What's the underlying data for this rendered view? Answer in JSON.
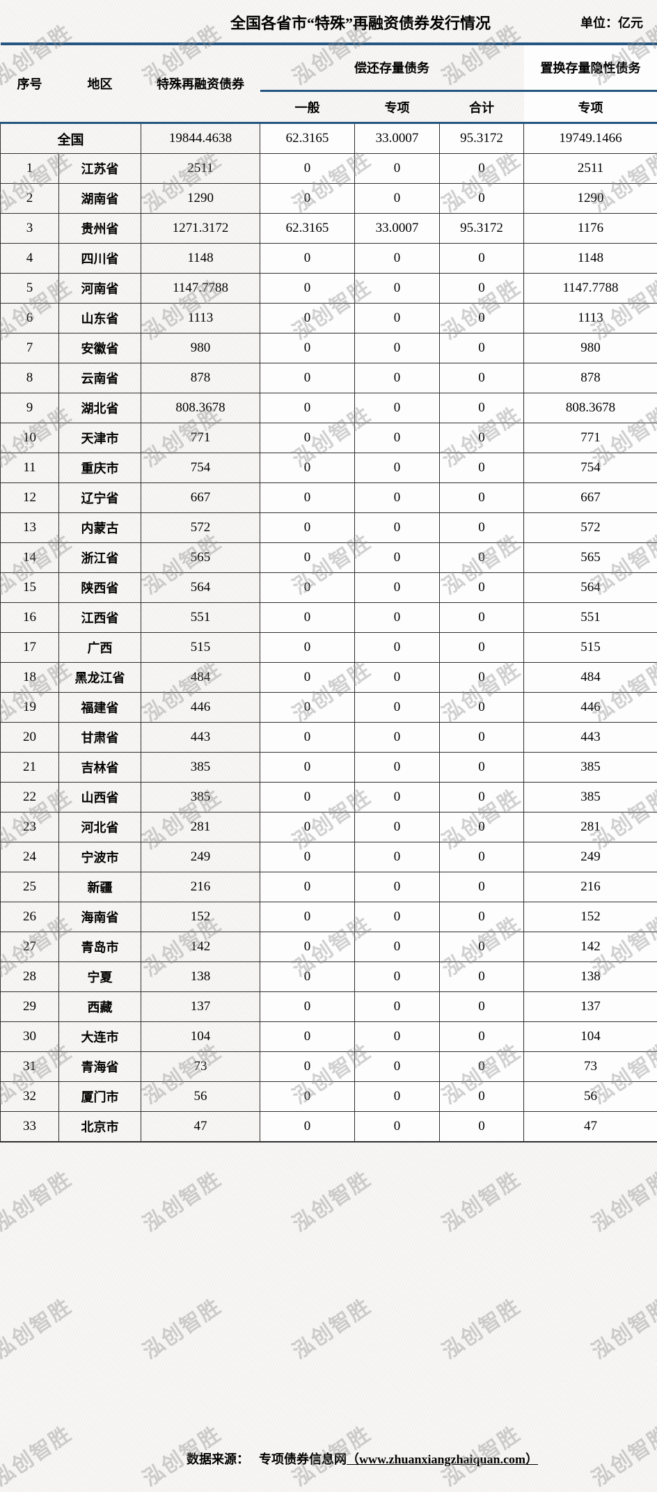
{
  "title": "全国各省市“特殊”再融资债券发行情况",
  "unit_label": "单位：亿元",
  "watermark": {
    "text": "泓创智胜"
  },
  "table": {
    "columns": [
      "序号",
      "地区",
      "特殊再融资债券"
    ],
    "group1": "偿还存量债务",
    "group1_sub": [
      "一般",
      "专项",
      "合计"
    ],
    "group2": "置换存量隐性债务",
    "group2_sub": "专项",
    "rows": [
      {
        "no": null,
        "region": "全国",
        "values": [
          "19844.4638",
          "62.3165",
          "33.0007",
          "95.3172",
          "19749.1466"
        ]
      },
      {
        "no": "1",
        "region": "江苏省",
        "values": [
          "2511",
          "0",
          "0",
          "0",
          "2511"
        ]
      },
      {
        "no": "2",
        "region": "湖南省",
        "values": [
          "1290",
          "0",
          "0",
          "0",
          "1290"
        ]
      },
      {
        "no": "3",
        "region": "贵州省",
        "values": [
          "1271.3172",
          "62.3165",
          "33.0007",
          "95.3172",
          "1176"
        ]
      },
      {
        "no": "4",
        "region": "四川省",
        "values": [
          "1148",
          "0",
          "0",
          "0",
          "1148"
        ]
      },
      {
        "no": "5",
        "region": "河南省",
        "values": [
          "1147.7788",
          "0",
          "0",
          "0",
          "1147.7788"
        ]
      },
      {
        "no": "6",
        "region": "山东省",
        "values": [
          "1113",
          "0",
          "0",
          "0",
          "1113"
        ]
      },
      {
        "no": "7",
        "region": "安徽省",
        "values": [
          "980",
          "0",
          "0",
          "0",
          "980"
        ]
      },
      {
        "no": "8",
        "region": "云南省",
        "values": [
          "878",
          "0",
          "0",
          "0",
          "878"
        ]
      },
      {
        "no": "9",
        "region": "湖北省",
        "values": [
          "808.3678",
          "0",
          "0",
          "0",
          "808.3678"
        ]
      },
      {
        "no": "10",
        "region": "天津市",
        "values": [
          "771",
          "0",
          "0",
          "0",
          "771"
        ]
      },
      {
        "no": "11",
        "region": "重庆市",
        "values": [
          "754",
          "0",
          "0",
          "0",
          "754"
        ]
      },
      {
        "no": "12",
        "region": "辽宁省",
        "values": [
          "667",
          "0",
          "0",
          "0",
          "667"
        ]
      },
      {
        "no": "13",
        "region": "内蒙古",
        "values": [
          "572",
          "0",
          "0",
          "0",
          "572"
        ]
      },
      {
        "no": "14",
        "region": "浙江省",
        "values": [
          "565",
          "0",
          "0",
          "0",
          "565"
        ]
      },
      {
        "no": "15",
        "region": "陕西省",
        "values": [
          "564",
          "0",
          "0",
          "0",
          "564"
        ]
      },
      {
        "no": "16",
        "region": "江西省",
        "values": [
          "551",
          "0",
          "0",
          "0",
          "551"
        ]
      },
      {
        "no": "17",
        "region": "广西",
        "values": [
          "515",
          "0",
          "0",
          "0",
          "515"
        ]
      },
      {
        "no": "18",
        "region": "黑龙江省",
        "values": [
          "484",
          "0",
          "0",
          "0",
          "484"
        ]
      },
      {
        "no": "19",
        "region": "福建省",
        "values": [
          "446",
          "0",
          "0",
          "0",
          "446"
        ]
      },
      {
        "no": "20",
        "region": "甘肃省",
        "values": [
          "443",
          "0",
          "0",
          "0",
          "443"
        ]
      },
      {
        "no": "21",
        "region": "吉林省",
        "values": [
          "385",
          "0",
          "0",
          "0",
          "385"
        ]
      },
      {
        "no": "22",
        "region": "山西省",
        "values": [
          "385",
          "0",
          "0",
          "0",
          "385"
        ]
      },
      {
        "no": "23",
        "region": "河北省",
        "values": [
          "281",
          "0",
          "0",
          "0",
          "281"
        ]
      },
      {
        "no": "24",
        "region": "宁波市",
        "values": [
          "249",
          "0",
          "0",
          "0",
          "249"
        ]
      },
      {
        "no": "25",
        "region": "新疆",
        "values": [
          "216",
          "0",
          "0",
          "0",
          "216"
        ]
      },
      {
        "no": "26",
        "region": "海南省",
        "values": [
          "152",
          "0",
          "0",
          "0",
          "152"
        ]
      },
      {
        "no": "27",
        "region": "青岛市",
        "values": [
          "142",
          "0",
          "0",
          "0",
          "142"
        ]
      },
      {
        "no": "28",
        "region": "宁夏",
        "values": [
          "138",
          "0",
          "0",
          "0",
          "138"
        ]
      },
      {
        "no": "29",
        "region": "西藏",
        "values": [
          "137",
          "0",
          "0",
          "0",
          "137"
        ]
      },
      {
        "no": "30",
        "region": "大连市",
        "values": [
          "104",
          "0",
          "0",
          "0",
          "104"
        ]
      },
      {
        "no": "31",
        "region": "青海省",
        "values": [
          "73",
          "0",
          "0",
          "0",
          "73"
        ]
      },
      {
        "no": "32",
        "region": "厦门市",
        "values": [
          "56",
          "0",
          "0",
          "0",
          "56"
        ]
      },
      {
        "no": "33",
        "region": "北京市",
        "values": [
          "47",
          "0",
          "0",
          "0",
          "47"
        ]
      }
    ]
  },
  "footer": {
    "source_label": "数据来源：",
    "site_name": "专项债券信息网",
    "url": "（www.zhuanxiangzhaiquan.com）"
  }
}
